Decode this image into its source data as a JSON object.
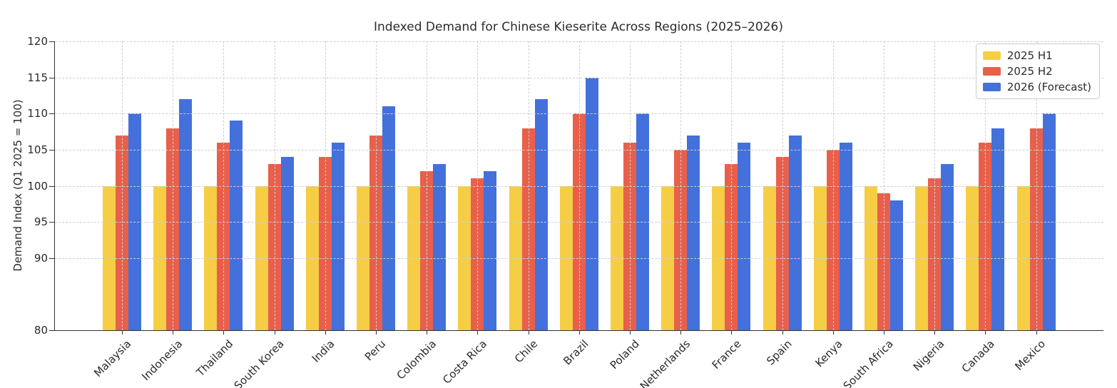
{
  "chart_data": {
    "type": "bar",
    "title": "Indexed Demand for Chinese Kieserite Across Regions (2025–2026)",
    "ylabel": "Demand Index (Q1 2025 = 100)",
    "categories": [
      "Malaysia",
      "Indonesia",
      "Thailand",
      "South Korea",
      "India",
      "Peru",
      "Colombia",
      "Costa Rica",
      "Chile",
      "Brazil",
      "Poland",
      "Netherlands",
      "France",
      "Spain",
      "Kenya",
      "South Africa",
      "Nigeria",
      "Canada",
      "Mexico"
    ],
    "series": [
      {
        "name": "2025 H1",
        "color": "#F6CE45",
        "values": [
          100,
          100,
          100,
          100,
          100,
          100,
          100,
          100,
          100,
          100,
          100,
          100,
          100,
          100,
          100,
          100,
          100,
          100,
          100
        ]
      },
      {
        "name": "2025 H2",
        "color": "#E8604C",
        "values": [
          107,
          108,
          106,
          103,
          104,
          107,
          102,
          101,
          108,
          110,
          106,
          105,
          103,
          104,
          105,
          99,
          101,
          106,
          108
        ]
      },
      {
        "name": "2026 (Forecast)",
        "color": "#4470DB",
        "values": [
          110,
          112,
          109,
          104,
          106,
          111,
          103,
          102,
          112,
          115,
          110,
          107,
          106,
          107,
          106,
          98,
          103,
          108,
          110
        ]
      }
    ],
    "ylim": [
      80,
      120
    ],
    "yticks": [
      80,
      90,
      95,
      100,
      105,
      110,
      115,
      120
    ],
    "grid": true,
    "legend_position": "upper right",
    "gridline_color": "#cfcfcf",
    "axis_color": "#333333",
    "text_color": "#2b2b2b"
  }
}
